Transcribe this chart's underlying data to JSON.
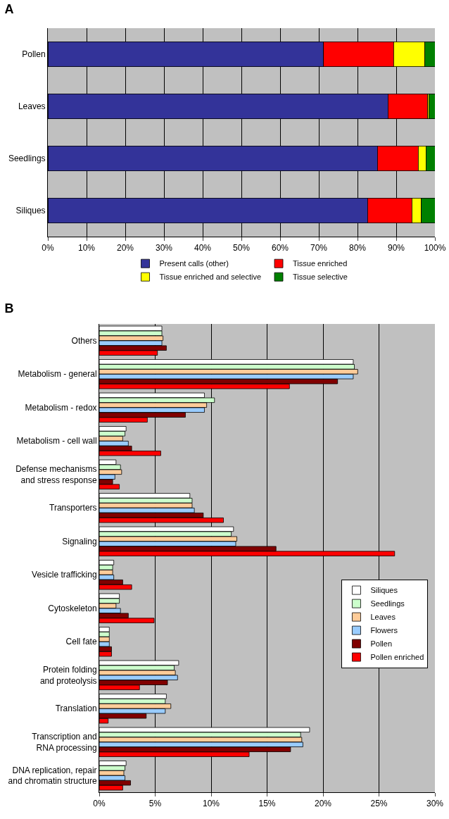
{
  "chart_data": [
    {
      "type": "bar",
      "title": "A",
      "orientation": "horizontal",
      "stacked": true,
      "categories": [
        "Pollen",
        "Leaves",
        "Seedlings",
        "Siliques"
      ],
      "series": [
        {
          "name": "Present calls (other)",
          "color": "#333399",
          "values": [
            71.2,
            87.9,
            85.1,
            82.6
          ]
        },
        {
          "name": "Tissue enriched",
          "color": "#ff0000",
          "values": [
            18.1,
            10.2,
            10.6,
            11.4
          ]
        },
        {
          "name": "Tissue enriched and selective",
          "color": "#ffff00",
          "values": [
            8.1,
            0.3,
            2.0,
            2.5
          ]
        },
        {
          "name": "Tissue selective",
          "color": "#008000",
          "values": [
            2.6,
            1.6,
            2.3,
            3.5
          ]
        }
      ],
      "xlim": [
        0,
        100
      ],
      "xticks": [
        {
          "value": 0,
          "label": "0%"
        },
        {
          "value": 10,
          "label": "10%"
        },
        {
          "value": 20,
          "label": "20%"
        },
        {
          "value": 30,
          "label": "30%"
        },
        {
          "value": 40,
          "label": "40%"
        },
        {
          "value": 50,
          "label": "50%"
        },
        {
          "value": 60,
          "label": "60%"
        },
        {
          "value": 70,
          "label": "70%"
        },
        {
          "value": 80,
          "label": "80%"
        },
        {
          "value": 90,
          "label": "90%"
        },
        {
          "value": 100,
          "label": "100%"
        }
      ],
      "grid": "x",
      "legend": "bottom"
    },
    {
      "type": "bar",
      "title": "B",
      "orientation": "horizontal",
      "categories": [
        "Others",
        "Metabolism - general",
        "Metabolism - redox",
        "Metabolism - cell wall",
        "Defense mechanisms\nand stress response",
        "Transporters",
        "Signaling",
        "Vesicle trafficking",
        "Cytoskeleton",
        "Cell fate",
        "Protein folding\nand proteolysis",
        "Translation",
        "Transcription and\nRNA processing",
        "DNA replication, repair\nand chromatin structure"
      ],
      "series": [
        {
          "name": "Siliques",
          "color": "#ffffff",
          "values": [
            5.6,
            22.7,
            9.4,
            2.4,
            1.5,
            8.1,
            12.0,
            1.3,
            1.8,
            0.9,
            7.1,
            6.0,
            18.8,
            2.4
          ]
        },
        {
          "name": "Seedlings",
          "color": "#ccffcc",
          "values": [
            5.6,
            22.8,
            10.3,
            2.3,
            1.9,
            8.3,
            11.8,
            1.2,
            1.8,
            0.9,
            6.7,
            5.9,
            18.0,
            2.3
          ]
        },
        {
          "name": "Leaves",
          "color": "#ffcc99",
          "values": [
            5.7,
            23.1,
            9.6,
            2.1,
            2.0,
            8.3,
            12.3,
            1.2,
            1.5,
            0.9,
            6.8,
            6.4,
            18.1,
            2.2
          ]
        },
        {
          "name": "Flowers",
          "color": "#99ccff",
          "values": [
            5.6,
            22.7,
            9.4,
            2.6,
            1.4,
            8.5,
            12.2,
            1.3,
            1.9,
            0.9,
            7.0,
            5.9,
            18.2,
            2.3
          ]
        },
        {
          "name": "Pollen",
          "color": "#800000",
          "values": [
            6.0,
            21.3,
            7.7,
            2.9,
            1.2,
            9.3,
            15.8,
            2.1,
            2.6,
            1.1,
            6.1,
            4.2,
            17.1,
            2.8
          ]
        },
        {
          "name": "Pollen enriched",
          "color": "#ff0000",
          "values": [
            5.2,
            17.0,
            4.3,
            5.5,
            1.8,
            11.1,
            26.4,
            2.9,
            4.9,
            1.1,
            3.6,
            0.8,
            13.4,
            2.1
          ]
        }
      ],
      "xlim": [
        0,
        30
      ],
      "xticks": [
        {
          "value": 0,
          "label": "0%"
        },
        {
          "value": 5,
          "label": "5%"
        },
        {
          "value": 10,
          "label": "10%"
        },
        {
          "value": 15,
          "label": "15%"
        },
        {
          "value": 20,
          "label": "20%"
        },
        {
          "value": 25,
          "label": "25%"
        },
        {
          "value": 30,
          "label": "30%"
        }
      ],
      "grid": "x",
      "legend": "right"
    }
  ]
}
